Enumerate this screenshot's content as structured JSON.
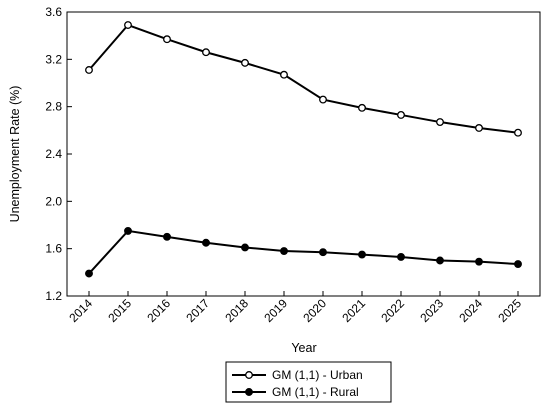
{
  "chart_data": {
    "type": "line",
    "title": "",
    "xlabel": "Year",
    "ylabel": "Unemployment Rate (%)",
    "x": [
      "2014",
      "2015",
      "2016",
      "2017",
      "2018",
      "2019",
      "2020",
      "2021",
      "2022",
      "2023",
      "2024",
      "2025"
    ],
    "ylim": [
      1.2,
      3.6
    ],
    "yticks": [
      "1.2",
      "1.6",
      "2.0",
      "2.4",
      "2.8",
      "3.2",
      "3.6"
    ],
    "grid": false,
    "legend_position": "bottom",
    "series": [
      {
        "name": "GM (1,1) - Urban",
        "marker": "open-circle",
        "color": "#000000",
        "values": [
          3.11,
          3.49,
          3.37,
          3.26,
          3.17,
          3.07,
          2.86,
          2.79,
          2.73,
          2.67,
          2.62,
          2.58
        ]
      },
      {
        "name": "GM (1,1) - Rural",
        "marker": "filled-circle",
        "color": "#000000",
        "values": [
          1.39,
          1.75,
          1.7,
          1.65,
          1.61,
          1.58,
          1.57,
          1.55,
          1.53,
          1.5,
          1.49,
          1.47
        ]
      }
    ]
  }
}
